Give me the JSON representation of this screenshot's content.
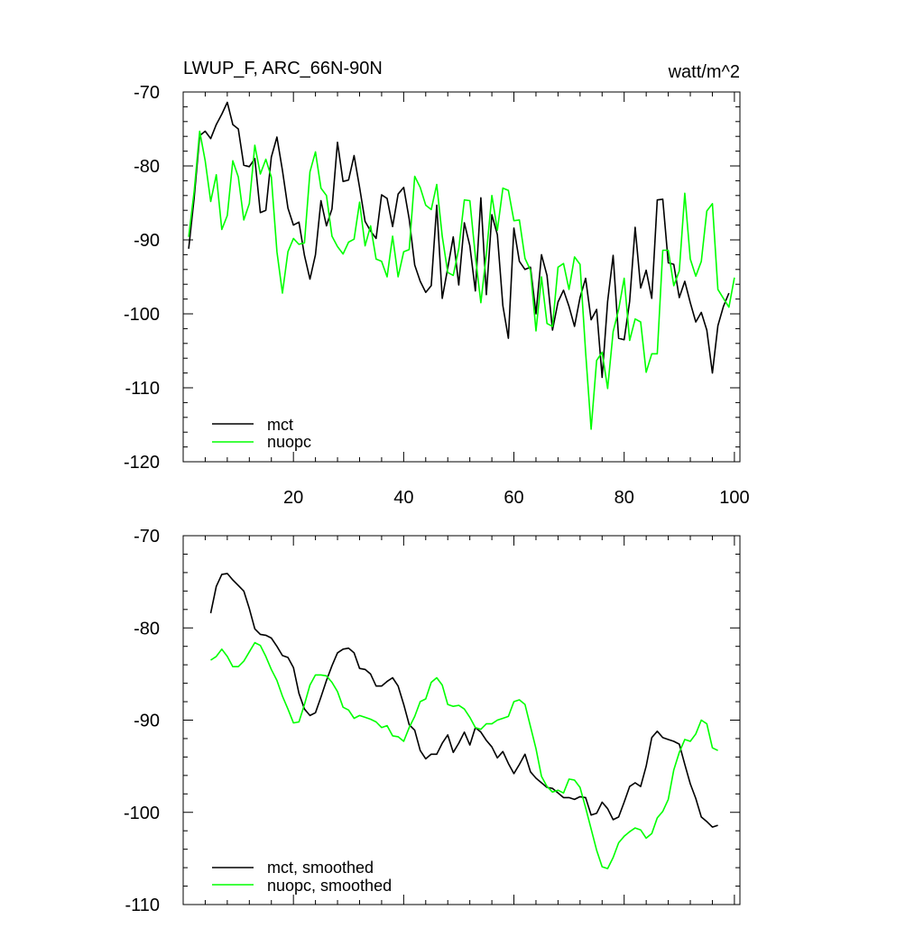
{
  "chart_data": [
    {
      "type": "line",
      "title": "LWUP_F, ARC_66N-90N",
      "units": "watt/m^2",
      "ylim": [
        -120,
        -70
      ],
      "xlim": [
        0,
        101
      ],
      "y_ticks": [
        "-70",
        "-80",
        "-90",
        "-100",
        "-110",
        "-120"
      ],
      "x_ticks": [
        "20",
        "40",
        "60",
        "80",
        "100"
      ],
      "legend_position": "bottom-left",
      "series": [
        {
          "name": "mct",
          "color": "#000000",
          "x_start": 1,
          "values": [
            -91.2,
            -84.3,
            -75.9,
            -75.3,
            -76.3,
            -74.4,
            -73.0,
            -71.4,
            -74.4,
            -75.0,
            -79.9,
            -80.1,
            -79.0,
            -86.3,
            -86.0,
            -78.8,
            -76.1,
            -80.6,
            -85.7,
            -88.0,
            -87.6,
            -92.1,
            -95.3,
            -92.0,
            -84.7,
            -88.1,
            -85.8,
            -76.8,
            -82.1,
            -81.9,
            -78.6,
            -82.9,
            -87.5,
            -88.8,
            -89.8,
            -83.9,
            -84.4,
            -88.2,
            -83.8,
            -82.9,
            -87.2,
            -93.4,
            -95.6,
            -97.1,
            -96.2,
            -85.3,
            -97.9,
            -93.8,
            -89.6,
            -96.1,
            -87.7,
            -90.8,
            -96.9,
            -84.3,
            -97.4,
            -86.6,
            -89.3,
            -98.9,
            -103.3,
            -88.4,
            -92.9,
            -94.0,
            -93.7,
            -100.0,
            -92.0,
            -94.8,
            -102.2,
            -98.4,
            -96.8,
            -99.0,
            -101.7,
            -97.8,
            -95.2,
            -100.8,
            -99.4,
            -108.6,
            -98.3,
            -92.1,
            -103.3,
            -103.5,
            -98.3,
            -88.3,
            -96.5,
            -94.1,
            -97.9,
            -84.6,
            -84.5,
            -93.1,
            -93.3,
            -97.8,
            -95.6,
            -98.5,
            -101.1,
            -99.8,
            -102.2,
            -108.0,
            -101.6,
            -99.0,
            -97.2
          ]
        },
        {
          "name": "nuopc",
          "color": "#00ff00",
          "x_start": 1,
          "values": [
            -89.6,
            -83.4,
            -75.3,
            -79.3,
            -84.8,
            -81.2,
            -88.6,
            -86.7,
            -79.3,
            -81.5,
            -87.3,
            -85.1,
            -77.2,
            -81.1,
            -79.1,
            -81.5,
            -91.6,
            -97.2,
            -91.6,
            -89.8,
            -90.6,
            -90.4,
            -80.8,
            -78.1,
            -83.0,
            -84.0,
            -89.5,
            -90.9,
            -91.9,
            -90.3,
            -89.9,
            -84.9,
            -90.8,
            -88.1,
            -92.6,
            -92.9,
            -95.0,
            -89.5,
            -95.0,
            -91.6,
            -91.3,
            -81.4,
            -82.9,
            -85.3,
            -85.9,
            -82.5,
            -89.5,
            -94.4,
            -94.8,
            -91.2,
            -84.6,
            -84.7,
            -92.2,
            -98.5,
            -91.9,
            -84.0,
            -88.7,
            -83.0,
            -83.3,
            -87.4,
            -87.3,
            -92.5,
            -94.1,
            -102.3,
            -95.0,
            -101.3,
            -101.7,
            -93.7,
            -93.2,
            -96.7,
            -92.3,
            -93.3,
            -105.2,
            -115.6,
            -106.3,
            -105.2,
            -110.1,
            -102.4,
            -99.4,
            -95.2,
            -103.6,
            -100.7,
            -101.1,
            -107.9,
            -105.4,
            -105.4,
            -91.4,
            -91.4,
            -96.2,
            -94.2,
            -83.7,
            -92.6,
            -94.9,
            -92.9,
            -86.1,
            -85.1,
            -96.7,
            -97.9,
            -99.1,
            -95.1
          ]
        }
      ]
    },
    {
      "type": "line",
      "ylim": [
        -110,
        -70
      ],
      "xlim": [
        0,
        101
      ],
      "y_ticks": [
        "-70",
        "-80",
        "-90",
        "-100",
        "-110"
      ],
      "legend_position": "bottom-left",
      "series": [
        {
          "name": "mct, smoothed",
          "color": "#000000",
          "x_start": 5,
          "values": [
            -78.4,
            -75.5,
            -74.2,
            -74.1,
            -74.8,
            -75.4,
            -76.0,
            -77.9,
            -80.1,
            -80.7,
            -80.8,
            -81.1,
            -82.0,
            -83.0,
            -83.2,
            -84.3,
            -87.1,
            -88.8,
            -89.5,
            -89.2,
            -87.5,
            -85.7,
            -84.1,
            -82.7,
            -82.3,
            -82.2,
            -82.7,
            -84.4,
            -84.5,
            -85.0,
            -86.3,
            -86.3,
            -85.8,
            -85.4,
            -86.3,
            -88.3,
            -90.5,
            -91.1,
            -93.3,
            -94.2,
            -93.7,
            -93.7,
            -92.5,
            -91.6,
            -93.5,
            -92.5,
            -91.3,
            -92.7,
            -90.8,
            -91.3,
            -92.2,
            -92.9,
            -94.1,
            -93.4,
            -94.7,
            -95.8,
            -94.8,
            -93.7,
            -95.6,
            -96.3,
            -96.8,
            -97.3,
            -97.4,
            -97.9,
            -98.4,
            -98.4,
            -98.6,
            -98.3,
            -98.4,
            -100.3,
            -100.1,
            -98.9,
            -99.6,
            -100.8,
            -100.5,
            -98.9,
            -97.2,
            -96.8,
            -97.2,
            -95.0,
            -91.9,
            -91.2,
            -91.9,
            -92.1,
            -92.3,
            -92.6,
            -94.8,
            -96.9,
            -98.5,
            -100.5,
            -101.0,
            -101.6,
            -101.4
          ]
        },
        {
          "name": "nuopc, smoothed",
          "color": "#00ff00",
          "x_start": 5,
          "values": [
            -83.5,
            -83.1,
            -82.3,
            -83.1,
            -84.2,
            -84.2,
            -83.6,
            -82.6,
            -81.6,
            -81.9,
            -83.1,
            -84.5,
            -85.7,
            -87.4,
            -88.8,
            -90.3,
            -90.2,
            -88.3,
            -86.2,
            -85.1,
            -85.1,
            -85.2,
            -85.9,
            -86.9,
            -88.6,
            -88.9,
            -89.8,
            -89.5,
            -89.7,
            -89.9,
            -90.2,
            -90.8,
            -90.6,
            -91.7,
            -91.8,
            -92.3,
            -90.8,
            -89.6,
            -88.0,
            -87.7,
            -85.9,
            -85.4,
            -86.2,
            -88.3,
            -88.5,
            -88.4,
            -88.8,
            -89.7,
            -90.8,
            -91.0,
            -90.4,
            -90.4,
            -90.0,
            -89.8,
            -89.6,
            -88.0,
            -87.8,
            -88.3,
            -90.7,
            -93.1,
            -96.1,
            -97.2,
            -97.8,
            -97.6,
            -97.9,
            -96.4,
            -96.5,
            -97.3,
            -99.5,
            -101.8,
            -104.1,
            -105.9,
            -106.1,
            -104.9,
            -103.3,
            -102.6,
            -102.1,
            -101.7,
            -101.9,
            -102.8,
            -102.3,
            -100.6,
            -99.9,
            -98.6,
            -95.4,
            -93.5,
            -92.1,
            -92.3,
            -91.5,
            -90.0,
            -90.4,
            -93.0,
            -93.3
          ]
        }
      ]
    }
  ]
}
